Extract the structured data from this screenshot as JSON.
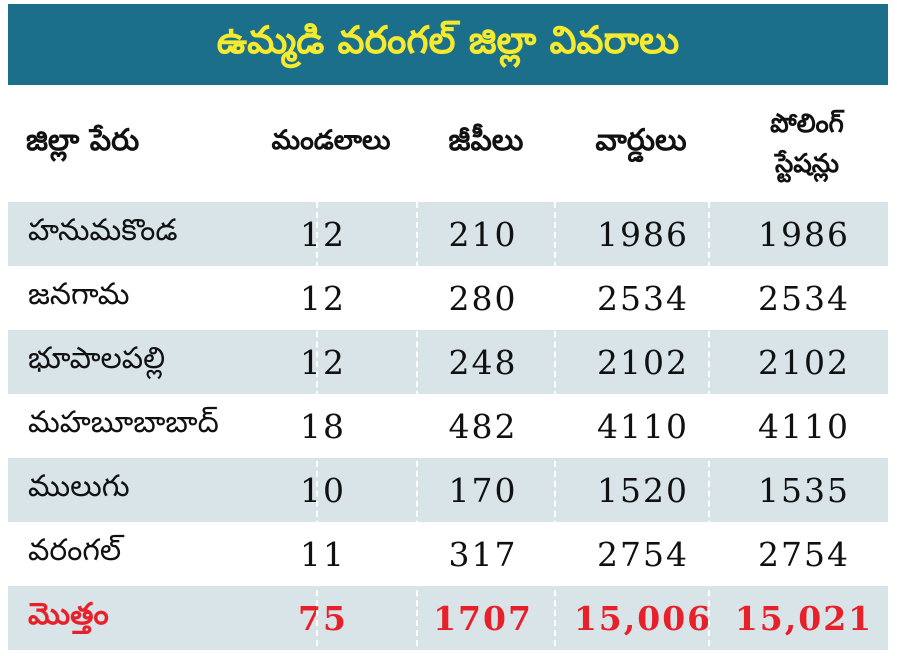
{
  "title": "ఉమ్మడి వరంగల్ జిల్లా వివరాలు",
  "colors": {
    "title_bg": "#1c6f8b",
    "title_text": "#f5ea2e",
    "row_shade": "#d9e4e8",
    "total_text": "#e8202a"
  },
  "table": {
    "headers": {
      "name": "జిల్లా పేరు",
      "mandals": "మండలాలు",
      "gps": "జీపీలు",
      "wards": "వార్డులు",
      "polling_line1": "పోలింగ్",
      "polling_line2": "స్టేషన్లు"
    },
    "rows": [
      {
        "name": "హనుమకొండ",
        "mandals": "12",
        "gps": "210",
        "wards": "1986",
        "polling": "1986"
      },
      {
        "name": "జనగామ",
        "mandals": "12",
        "gps": "280",
        "wards": "2534",
        "polling": "2534"
      },
      {
        "name": "భూపాలపల్లి",
        "mandals": "12",
        "gps": "248",
        "wards": "2102",
        "polling": "2102"
      },
      {
        "name": "మహబూబాబాద్",
        "mandals": "18",
        "gps": "482",
        "wards": "4110",
        "polling": "4110"
      },
      {
        "name": "ములుగు",
        "mandals": "10",
        "gps": "170",
        "wards": "1520",
        "polling": "1535"
      },
      {
        "name": "వరంగల్",
        "mandals": "11",
        "gps": "317",
        "wards": "2754",
        "polling": "2754"
      }
    ],
    "total": {
      "name": "మొత్తం",
      "mandals": "75",
      "gps": "1707",
      "wards": "15,006",
      "polling": "15,021"
    }
  }
}
